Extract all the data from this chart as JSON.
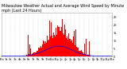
{
  "title": "Milwaukee Weather Actual and Average Wind Speed by Minute mph (Last 24 Hours)",
  "background_color": "#ffffff",
  "plot_bg_color": "#ffffff",
  "grid_color": "#bbbbbb",
  "bar_color": "#ff0000",
  "line_color": "#0000ff",
  "num_minutes": 1440,
  "x_tick_interval": 60,
  "ylim": [
    0,
    28
  ],
  "title_fontsize": 3.5,
  "tick_fontsize": 2.5,
  "ylabel_right": true,
  "yticks": [
    0,
    5,
    10,
    15,
    20,
    25
  ]
}
